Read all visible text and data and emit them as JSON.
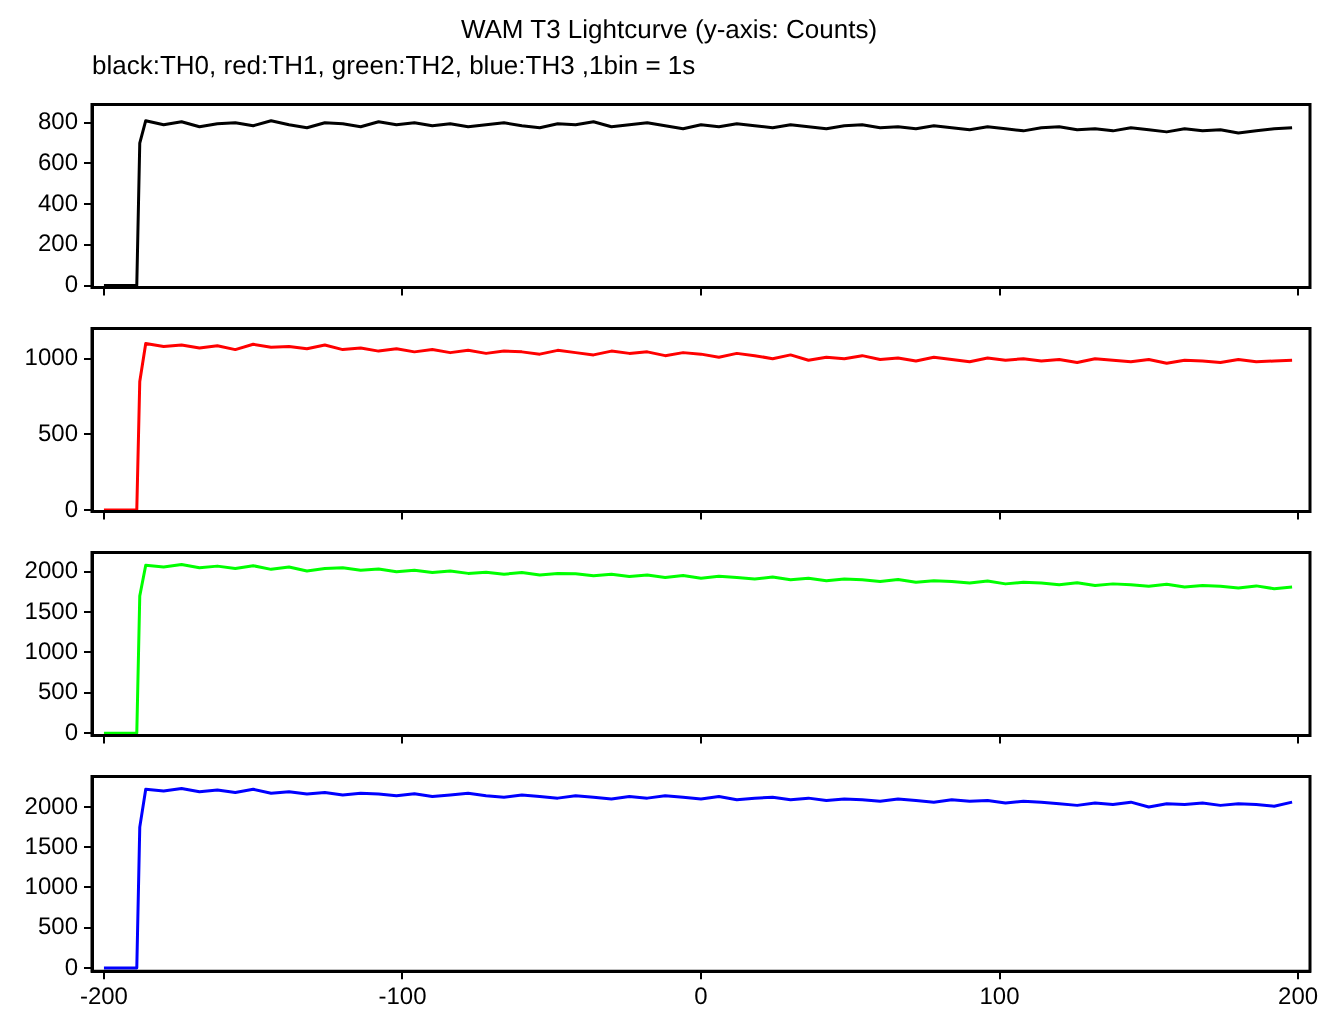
{
  "chart_data": [
    {
      "type": "line",
      "title": "WAM T3 Lightcurve (y-axis: Counts)",
      "subtitle": "black:TH0, red:TH1, green:TH2, blue:TH3 ,1bin = 1s",
      "x": [
        -200,
        -189,
        -188,
        -186,
        -180,
        -174,
        -168,
        -162,
        -156,
        -150,
        -144,
        -138,
        -132,
        -126,
        -120,
        -114,
        -108,
        -102,
        -96,
        -90,
        -84,
        -78,
        -72,
        -66,
        -60,
        -54,
        -48,
        -42,
        -36,
        -30,
        -24,
        -18,
        -12,
        -6,
        0,
        6,
        12,
        18,
        24,
        30,
        36,
        42,
        48,
        54,
        60,
        66,
        72,
        78,
        84,
        90,
        96,
        102,
        108,
        114,
        120,
        126,
        132,
        138,
        144,
        150,
        156,
        162,
        168,
        174,
        180,
        186,
        192,
        198
      ],
      "xlim": [
        -204,
        204
      ],
      "xticks": [
        -200,
        -100,
        0,
        100,
        200
      ],
      "ylim": [
        -10,
        890
      ],
      "yticks": [
        0,
        200,
        400,
        600,
        800
      ],
      "grid": false,
      "tick_labels": "y",
      "series": [
        {
          "color": "#000000",
          "values": [
            0,
            0,
            700,
            810,
            790,
            805,
            780,
            795,
            800,
            785,
            810,
            790,
            775,
            800,
            795,
            780,
            805,
            790,
            800,
            785,
            795,
            780,
            790,
            800,
            785,
            775,
            795,
            790,
            805,
            780,
            790,
            800,
            785,
            770,
            790,
            780,
            795,
            785,
            775,
            790,
            780,
            770,
            785,
            790,
            775,
            780,
            770,
            785,
            775,
            765,
            780,
            770,
            760,
            775,
            780,
            765,
            770,
            760,
            775,
            765,
            755,
            770,
            760,
            765,
            750,
            760,
            770,
            775
          ]
        }
      ]
    },
    {
      "type": "line",
      "x": [
        -200,
        -189,
        -188,
        -186,
        -180,
        -174,
        -168,
        -162,
        -156,
        -150,
        -144,
        -138,
        -132,
        -126,
        -120,
        -114,
        -108,
        -102,
        -96,
        -90,
        -84,
        -78,
        -72,
        -66,
        -60,
        -54,
        -48,
        -42,
        -36,
        -30,
        -24,
        -18,
        -12,
        -6,
        0,
        6,
        12,
        18,
        24,
        30,
        36,
        42,
        48,
        54,
        60,
        66,
        72,
        78,
        84,
        90,
        96,
        102,
        108,
        114,
        120,
        126,
        132,
        138,
        144,
        150,
        156,
        162,
        168,
        174,
        180,
        186,
        192,
        198
      ],
      "xlim": [
        -204,
        204
      ],
      "xticks": [
        -200,
        -100,
        0,
        100,
        200
      ],
      "ylim": [
        -10,
        1200
      ],
      "yticks": [
        0,
        500,
        1000
      ],
      "grid": false,
      "tick_labels": "y",
      "series": [
        {
          "color": "#ff0000",
          "values": [
            0,
            0,
            850,
            1100,
            1080,
            1090,
            1070,
            1085,
            1060,
            1095,
            1075,
            1080,
            1065,
            1090,
            1060,
            1070,
            1050,
            1065,
            1045,
            1060,
            1040,
            1055,
            1035,
            1050,
            1045,
            1030,
            1055,
            1040,
            1025,
            1050,
            1035,
            1045,
            1020,
            1040,
            1030,
            1010,
            1035,
            1020,
            1000,
            1025,
            990,
            1010,
            1000,
            1020,
            995,
            1005,
            985,
            1010,
            995,
            980,
            1005,
            990,
            1000,
            985,
            995,
            975,
            1000,
            990,
            980,
            995,
            970,
            990,
            985,
            975,
            995,
            980,
            985,
            990
          ]
        }
      ]
    },
    {
      "type": "line",
      "x": [
        -200,
        -189,
        -188,
        -186,
        -180,
        -174,
        -168,
        -162,
        -156,
        -150,
        -144,
        -138,
        -132,
        -126,
        -120,
        -114,
        -108,
        -102,
        -96,
        -90,
        -84,
        -78,
        -72,
        -66,
        -60,
        -54,
        -48,
        -42,
        -36,
        -30,
        -24,
        -18,
        -12,
        -6,
        0,
        6,
        12,
        18,
        24,
        30,
        36,
        42,
        48,
        54,
        60,
        66,
        72,
        78,
        84,
        90,
        96,
        102,
        108,
        114,
        120,
        126,
        132,
        138,
        144,
        150,
        156,
        162,
        168,
        174,
        180,
        186,
        192,
        198
      ],
      "xlim": [
        -204,
        204
      ],
      "xticks": [
        -200,
        -100,
        0,
        100,
        200
      ],
      "ylim": [
        -30,
        2240
      ],
      "yticks": [
        0,
        500,
        1000,
        1500,
        2000
      ],
      "grid": false,
      "tick_labels": "y",
      "series": [
        {
          "color": "#00ff00",
          "values": [
            0,
            0,
            1700,
            2080,
            2060,
            2090,
            2050,
            2070,
            2040,
            2075,
            2030,
            2060,
            2010,
            2040,
            2050,
            2020,
            2035,
            2000,
            2020,
            1990,
            2010,
            1980,
            1995,
            1970,
            1990,
            1960,
            1980,
            1975,
            1950,
            1970,
            1940,
            1960,
            1930,
            1955,
            1920,
            1945,
            1930,
            1910,
            1935,
            1900,
            1920,
            1890,
            1910,
            1900,
            1880,
            1905,
            1870,
            1890,
            1880,
            1860,
            1885,
            1850,
            1870,
            1860,
            1840,
            1865,
            1830,
            1850,
            1840,
            1820,
            1845,
            1810,
            1830,
            1820,
            1800,
            1825,
            1790,
            1810
          ]
        }
      ]
    },
    {
      "type": "line",
      "x": [
        -200,
        -189,
        -188,
        -186,
        -180,
        -174,
        -168,
        -162,
        -156,
        -150,
        -144,
        -138,
        -132,
        -126,
        -120,
        -114,
        -108,
        -102,
        -96,
        -90,
        -84,
        -78,
        -72,
        -66,
        -60,
        -54,
        -48,
        -42,
        -36,
        -30,
        -24,
        -18,
        -12,
        -6,
        0,
        6,
        12,
        18,
        24,
        30,
        36,
        42,
        48,
        54,
        60,
        66,
        72,
        78,
        84,
        90,
        96,
        102,
        108,
        114,
        120,
        126,
        132,
        138,
        144,
        150,
        156,
        162,
        168,
        174,
        180,
        186,
        192,
        198
      ],
      "xlim": [
        -204,
        204
      ],
      "xticks": [
        -200,
        -100,
        0,
        100,
        200
      ],
      "ylim": [
        -40,
        2380
      ],
      "yticks": [
        0,
        500,
        1000,
        1500,
        2000
      ],
      "grid": false,
      "series": [
        {
          "color": "#0000ff",
          "values": [
            0,
            0,
            1750,
            2220,
            2200,
            2230,
            2190,
            2210,
            2180,
            2220,
            2170,
            2190,
            2160,
            2180,
            2150,
            2170,
            2160,
            2140,
            2165,
            2130,
            2150,
            2170,
            2140,
            2120,
            2150,
            2130,
            2110,
            2140,
            2120,
            2100,
            2130,
            2110,
            2140,
            2120,
            2100,
            2130,
            2090,
            2110,
            2120,
            2090,
            2110,
            2080,
            2100,
            2090,
            2070,
            2100,
            2080,
            2060,
            2090,
            2070,
            2080,
            2050,
            2070,
            2060,
            2040,
            2020,
            2050,
            2030,
            2060,
            2000,
            2040,
            2030,
            2050,
            2020,
            2040,
            2030,
            2010,
            2060
          ]
        }
      ]
    }
  ]
}
